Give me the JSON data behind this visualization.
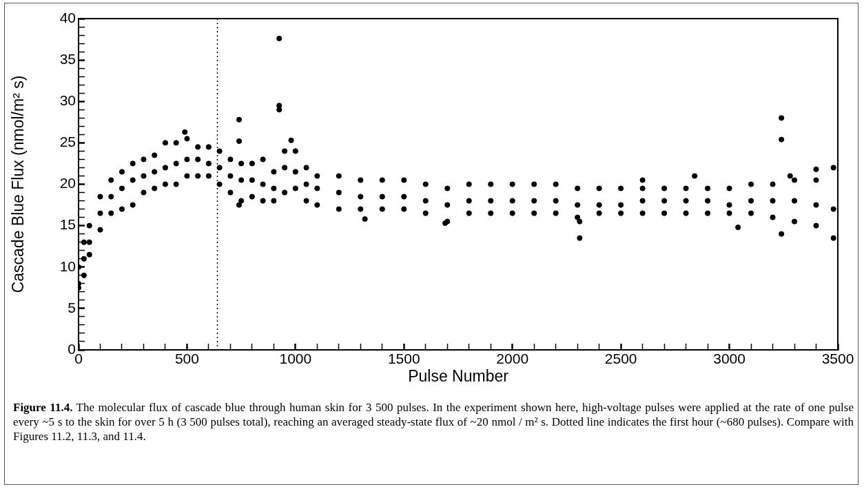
{
  "chart_data": {
    "type": "scatter",
    "xlabel": "Pulse Number",
    "ylabel": "Cascade Blue Flux (nmol/m² s)",
    "annotations": [
      "Figure 11.4.",
      "The molecular flux of cascade blue through human skin for 3 500 pulses.  In the experiment shown here, high-voltage pulses were applied at the rate of one pulse every ~5 s to the skin for over 5 h (3 500 pulses total), reaching an averaged steady-state flux of ~20  nmol / m² s.  Dotted line indicates the first hour (~680 pulses).  Compare with Figures 11.2, 11.3, and 11.4."
    ],
    "xlim": [
      0,
      3500
    ],
    "ylim": [
      0,
      40
    ],
    "xticks": [
      0,
      {
        "value": 100,
        "label": null
      },
      {
        "value": 200,
        "label": null
      },
      {
        "value": 300,
        "label": null
      },
      {
        "value": 400,
        "label": null
      },
      500,
      {
        "value": 600,
        "label": null
      },
      {
        "value": 700,
        "label": null
      },
      {
        "value": 800,
        "label": null
      },
      {
        "value": 900,
        "label": null
      },
      1000,
      {
        "value": 1100,
        "label": null
      },
      {
        "value": 1200,
        "label": null
      },
      {
        "value": 1300,
        "label": null
      },
      {
        "value": 1400,
        "label": null
      },
      1500,
      {
        "value": 1600,
        "label": null
      },
      {
        "value": 1700,
        "label": null
      },
      {
        "value": 1800,
        "label": null
      },
      {
        "value": 1900,
        "label": null
      },
      2000,
      {
        "value": 2100,
        "label": null
      },
      {
        "value": 2200,
        "label": null
      },
      {
        "value": 2300,
        "label": null
      },
      {
        "value": 2400,
        "label": null
      },
      2500,
      {
        "value": 2600,
        "label": null
      },
      {
        "value": 2700,
        "label": null
      },
      {
        "value": 2800,
        "label": null
      },
      {
        "value": 2900,
        "label": null
      },
      3000,
      {
        "value": 3100,
        "label": null
      },
      {
        "value": 3200,
        "label": null
      },
      {
        "value": 3300,
        "label": null
      },
      {
        "value": 3400,
        "label": null
      },
      3500
    ],
    "yticks": [
      0,
      {
        "value": 1,
        "label": null
      },
      {
        "value": 2,
        "label": null
      },
      {
        "value": 3,
        "label": null
      },
      {
        "value": 4,
        "label": null
      },
      5,
      {
        "value": 6,
        "label": null
      },
      {
        "value": 7,
        "label": null
      },
      {
        "value": 8,
        "label": null
      },
      {
        "value": 9,
        "label": null
      },
      10,
      {
        "value": 11,
        "label": null
      },
      {
        "value": 12,
        "label": null
      },
      {
        "value": 13,
        "label": null
      },
      {
        "value": 14,
        "label": null
      },
      15,
      {
        "value": 16,
        "label": null
      },
      {
        "value": 17,
        "label": null
      },
      {
        "value": 18,
        "label": null
      },
      {
        "value": 19,
        "label": null
      },
      20,
      {
        "value": 21,
        "label": null
      },
      {
        "value": 22,
        "label": null
      },
      {
        "value": 23,
        "label": null
      },
      {
        "value": 24,
        "label": null
      },
      25,
      {
        "value": 26,
        "label": null
      },
      {
        "value": 27,
        "label": null
      },
      {
        "value": 28,
        "label": null
      },
      {
        "value": 29,
        "label": null
      },
      30,
      {
        "value": 31,
        "label": null
      },
      {
        "value": 32,
        "label": null
      },
      {
        "value": 33,
        "label": null
      },
      {
        "value": 34,
        "label": null
      },
      35,
      {
        "value": 36,
        "label": null
      },
      {
        "value": 37,
        "label": null
      },
      {
        "value": 38,
        "label": null
      },
      {
        "value": 39,
        "label": null
      },
      40
    ],
    "grid": false,
    "legend": false,
    "marker": "circle",
    "ref_lines": [
      {
        "axis": "x",
        "value": 640,
        "color": "#000000",
        "line_style": "dotted"
      }
    ],
    "series": [
      {
        "color": "#000000",
        "x": [
          0,
          0,
          0,
          25,
          25,
          25,
          50,
          50,
          50,
          100,
          100,
          100,
          150,
          150,
          150,
          200,
          200,
          200,
          250,
          250,
          250,
          300,
          300,
          300,
          350,
          350,
          350,
          400,
          400,
          400,
          450,
          450,
          450,
          490,
          500,
          500,
          500,
          550,
          550,
          550,
          600,
          600,
          600,
          650,
          650,
          650,
          700,
          700,
          700,
          740,
          740,
          740,
          750,
          750,
          750,
          800,
          800,
          800,
          850,
          850,
          850,
          900,
          900,
          900,
          925,
          925,
          925,
          950,
          950,
          950,
          980,
          1000,
          1000,
          1000,
          1050,
          1050,
          1050,
          1100,
          1100,
          1100,
          1200,
          1200,
          1200,
          1300,
          1300,
          1300,
          1320,
          1400,
          1400,
          1400,
          1500,
          1500,
          1500,
          1600,
          1600,
          1600,
          1690,
          1700,
          1700,
          1700,
          1800,
          1800,
          1800,
          1900,
          1900,
          1900,
          2000,
          2000,
          2000,
          2100,
          2100,
          2100,
          2200,
          2200,
          2200,
          2300,
          2300,
          2300,
          2310,
          2310,
          2400,
          2400,
          2400,
          2500,
          2500,
          2500,
          2600,
          2600,
          2600,
          2600,
          2700,
          2700,
          2700,
          2800,
          2800,
          2800,
          2840,
          2900,
          2900,
          2900,
          3000,
          3000,
          3000,
          3040,
          3100,
          3100,
          3100,
          3200,
          3200,
          3200,
          3240,
          3240,
          3240,
          3280,
          3300,
          3300,
          3300,
          3400,
          3400,
          3400,
          3400,
          3480,
          3480,
          3480
        ],
        "values": [
          8,
          7.5,
          10,
          11,
          9,
          13,
          13,
          11.5,
          15,
          16.5,
          14.5,
          18.5,
          18.5,
          16.5,
          20.5,
          19.5,
          17,
          21.5,
          20.5,
          17.5,
          22.5,
          21,
          19,
          23,
          21.5,
          19.5,
          23.5,
          22,
          20,
          25,
          22.5,
          20,
          25,
          26.3,
          23,
          21,
          25.5,
          23,
          21,
          24.5,
          22.5,
          21,
          24.5,
          22,
          20,
          24,
          21,
          19,
          23,
          27.8,
          25.2,
          17.5,
          20.5,
          18,
          22.5,
          20.5,
          18.5,
          22.5,
          20,
          18,
          23,
          19.5,
          18,
          21.5,
          37.6,
          29.5,
          29,
          22,
          19,
          24,
          25.3,
          21.5,
          19.5,
          24,
          20,
          18,
          22,
          19.5,
          17.5,
          21,
          19,
          17,
          21,
          18.5,
          17,
          20.5,
          15.8,
          18.5,
          17,
          20.5,
          18.5,
          17,
          20.5,
          18,
          16.5,
          20,
          15.3,
          17.5,
          15.5,
          19.5,
          18,
          16.5,
          20,
          18,
          16.5,
          20,
          18,
          16.5,
          20,
          18,
          16.5,
          20,
          18,
          16.5,
          20,
          17.5,
          16,
          19.5,
          15.5,
          13.5,
          17.5,
          16.5,
          19.5,
          17.5,
          16.5,
          19.5,
          18,
          16.5,
          19.5,
          20.5,
          18,
          16.5,
          19.5,
          18,
          16.5,
          19.5,
          21,
          18,
          16.5,
          19.5,
          17.5,
          16.5,
          19.5,
          14.8,
          18,
          16.5,
          20,
          18,
          16,
          20,
          28,
          25.4,
          14,
          21,
          18,
          15.5,
          20.5,
          17.5,
          15,
          20.5,
          21.8,
          17,
          13.5,
          22
        ]
      }
    ]
  }
}
